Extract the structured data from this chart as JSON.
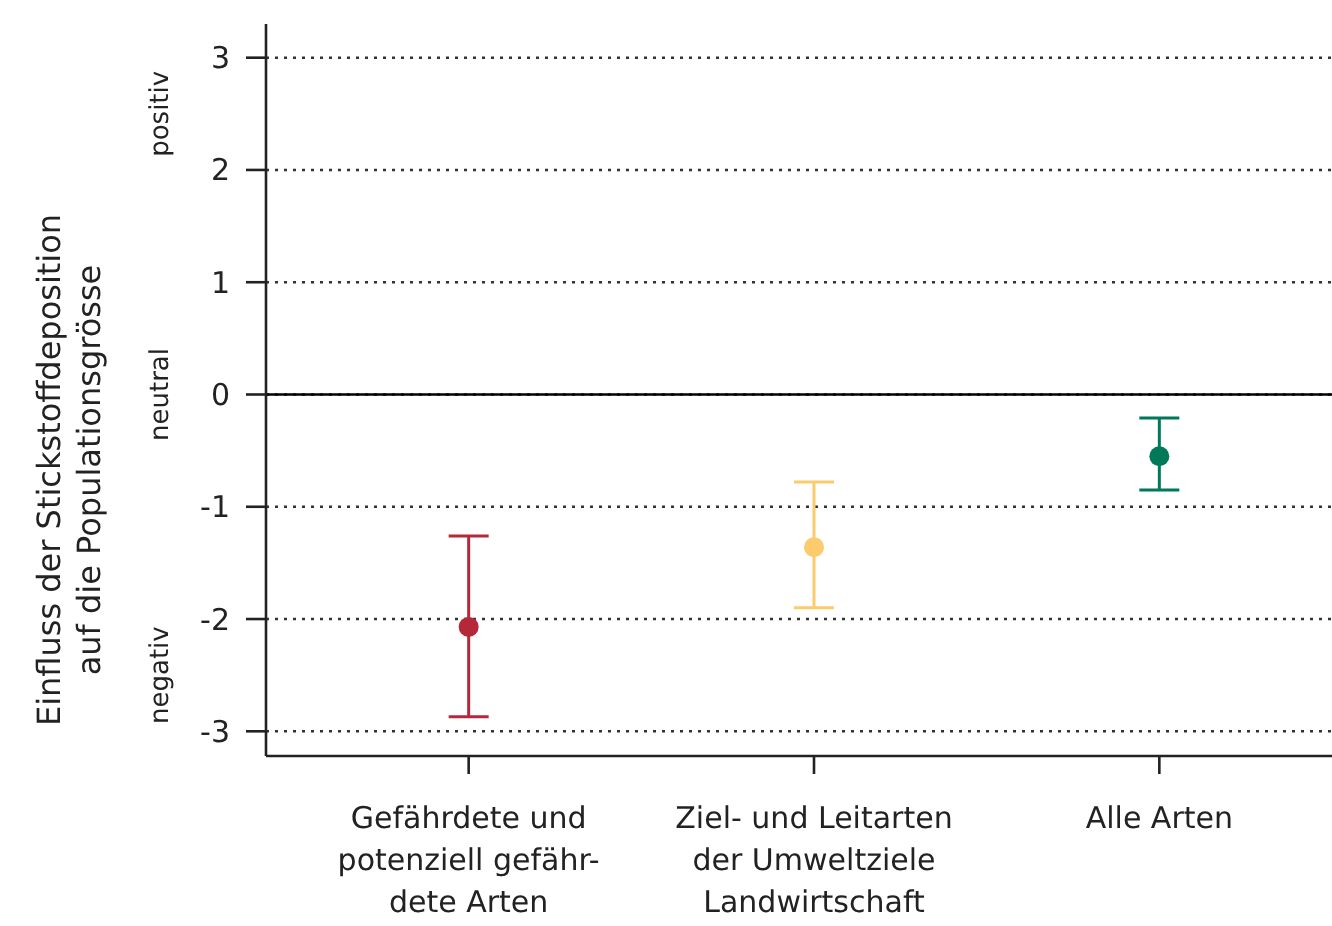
{
  "chart_data": {
    "type": "scatter",
    "ylabel": "Einfluss der Stickstoffdeposition\nauf die Populationsgrösse",
    "categories": [
      "Gefährdete und\npotenziell gefähr-\ndete Arten",
      "Ziel- und Leitarten\nder Umweltziele\nLandwirtschaft",
      "Alle Arten"
    ],
    "values": [
      -2.07,
      -1.36,
      -0.55
    ],
    "errors": [
      [
        -2.87,
        -1.26
      ],
      [
        -1.9,
        -0.78
      ],
      [
        -0.85,
        -0.21
      ]
    ],
    "colors": [
      "#b5283a",
      "#fbcb6e",
      "#00795a"
    ],
    "ylim": [
      -3.22,
      3.3
    ],
    "yticks": [
      -3,
      -2,
      -1,
      0,
      1,
      2,
      3
    ],
    "grid": "y",
    "marker": "circle",
    "ref_lines": [
      {
        "axis": "y",
        "value": 0,
        "color": "#000000",
        "line_style": "solid"
      }
    ],
    "annotations": [
      "positiv",
      "neutral",
      "negativ"
    ]
  }
}
